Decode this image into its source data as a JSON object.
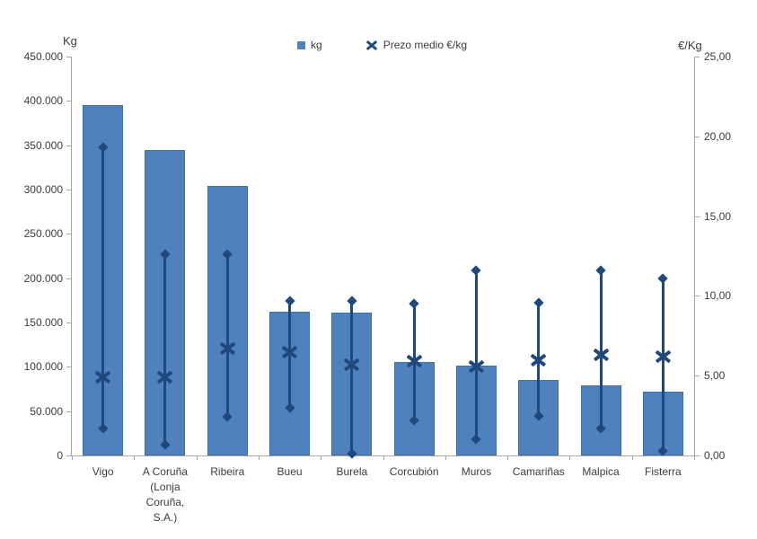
{
  "chart_data": {
    "type": "bar",
    "title": "",
    "categories": [
      "Vigo",
      "A Coruña (Lonja Coruña, S.A.)",
      "Ribeira",
      "Bueu",
      "Burela",
      "Corcubión",
      "Muros",
      "Camariñas",
      "Malpica",
      "Fisterra"
    ],
    "category_label_lines": [
      [
        "Vigo"
      ],
      [
        "A Coruña",
        "(Lonja",
        "Coruña,",
        "S.A.)"
      ],
      [
        "Ribeira"
      ],
      [
        "Bueu"
      ],
      [
        "Burela"
      ],
      [
        "Corcubión"
      ],
      [
        "Muros"
      ],
      [
        "Camariñas"
      ],
      [
        "Malpica"
      ],
      [
        "Fisterra"
      ]
    ],
    "left_axis": {
      "title": "Kg",
      "min": 0,
      "max": 450000,
      "step": 50000,
      "tick_labels": [
        "450.000",
        "400.000",
        "350.000",
        "300.000",
        "250.000",
        "200.000",
        "150.000",
        "100.000",
        "50.000",
        "0"
      ]
    },
    "right_axis": {
      "title": "€/Kg",
      "min": 0,
      "max": 25,
      "step": 5,
      "tick_labels": [
        "25,00",
        "20,00",
        "15,00",
        "10,00",
        "5,00",
        "0,00"
      ]
    },
    "series": [
      {
        "name": "kg",
        "type": "bar",
        "axis": "left",
        "values": [
          395000,
          345000,
          304000,
          162000,
          161500,
          105000,
          101000,
          85000,
          79000,
          72000
        ]
      },
      {
        "name": "Prezo medio €/kg",
        "type": "x_marker",
        "axis": "right",
        "values": [
          4.9,
          4.9,
          6.7,
          6.5,
          5.7,
          5.9,
          5.6,
          6.0,
          6.3,
          6.2
        ]
      }
    ],
    "price_range": {
      "axis": "right",
      "high": [
        19.3,
        12.6,
        12.6,
        9.7,
        9.7,
        9.5,
        11.6,
        9.6,
        11.6,
        11.1
      ],
      "low": [
        1.7,
        0.7,
        2.4,
        3.0,
        0.1,
        2.2,
        1.0,
        2.5,
        1.7,
        0.3
      ]
    },
    "legend": [
      {
        "label": "kg",
        "marker": "square"
      },
      {
        "label": "Prezo medio €/kg",
        "marker": "x"
      }
    ],
    "colors": {
      "bar": "#4F81BD",
      "marker": "#1F497D",
      "axis_line": "#A6A6A6",
      "text": "#3C3C3C"
    },
    "grid": false,
    "legend_position": "top-center"
  }
}
